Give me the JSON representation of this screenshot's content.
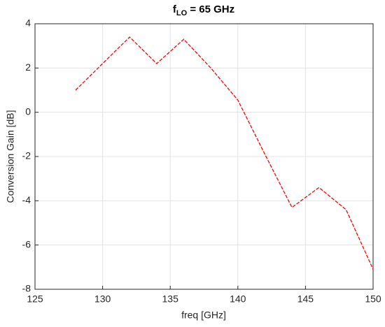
{
  "chart_data": {
    "type": "line",
    "title": {
      "main": "f",
      "subscript": "LO",
      "rest": " = 65 GHz"
    },
    "xlabel": "freq [GHz]",
    "ylabel": "Conversion Gain [dB]",
    "x": [
      128,
      130,
      132,
      134,
      136,
      138,
      140,
      142,
      144,
      146,
      148,
      150
    ],
    "series": [
      {
        "color": "#ff0000",
        "values": [
          1.0,
          2.2,
          3.4,
          2.2,
          3.3,
          2.0,
          0.55,
          -1.9,
          -4.3,
          -3.4,
          -4.4,
          -7.1
        ]
      }
    ],
    "xlim": [
      125,
      150
    ],
    "xticks": [
      125,
      130,
      135,
      140,
      145,
      150
    ],
    "ylim": [
      -8,
      4
    ],
    "yticks": [
      -8,
      -6,
      -4,
      -2,
      0,
      2,
      4
    ],
    "grid": true,
    "line_style": "dashed"
  }
}
